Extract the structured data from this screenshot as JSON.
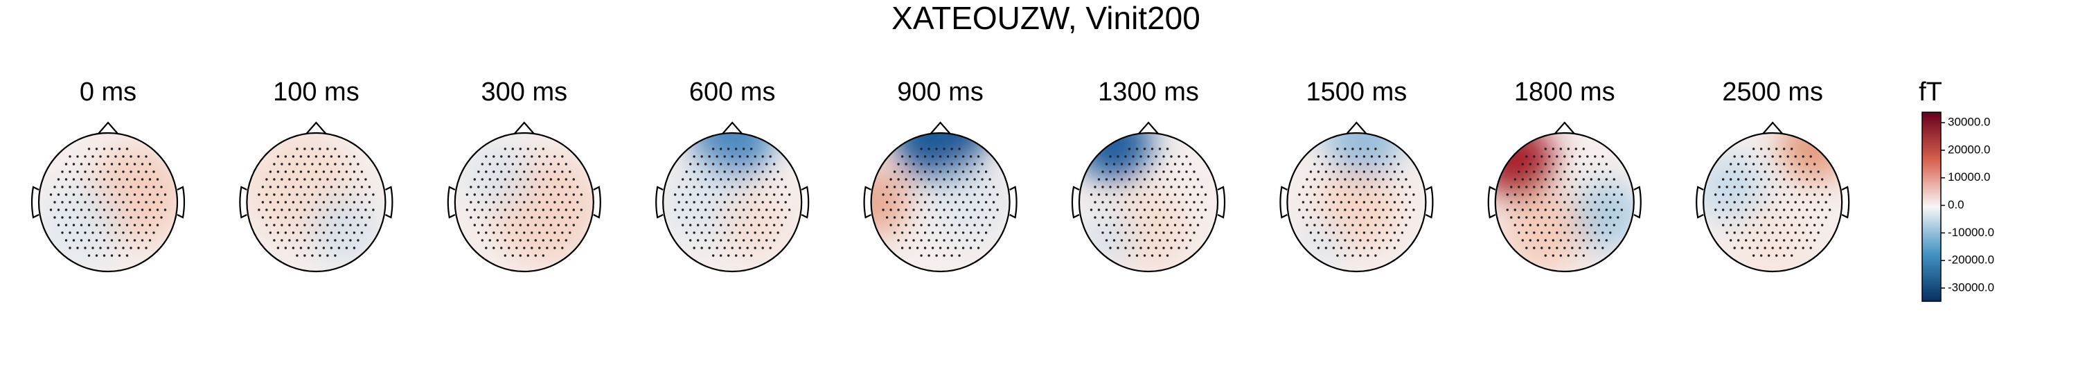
{
  "chart_data": {
    "type": "topomap",
    "title": "XATEOUZW, Vinit200",
    "panels": [
      "0 ms",
      "100 ms",
      "300 ms",
      "600 ms",
      "900 ms",
      "1300 ms",
      "1500 ms",
      "1800 ms",
      "2500 ms"
    ],
    "colorbar": {
      "label": "fT",
      "clim": [
        -34800,
        33800
      ],
      "cmap": [
        "#67001f",
        "#d6604d",
        "#f7f7f7",
        "#4393c3",
        "#053061"
      ],
      "ticks": [
        {
          "value": 30000,
          "label": "30000.0"
        },
        {
          "value": 20000,
          "label": "20000.0"
        },
        {
          "value": 10000,
          "label": "10000.0"
        },
        {
          "value": 0,
          "label": "0.0"
        },
        {
          "value": -10000,
          "label": "-10000.0"
        },
        {
          "value": -20000,
          "label": "-20000.0"
        },
        {
          "value": -30000,
          "label": "-30000.0"
        }
      ]
    }
  }
}
